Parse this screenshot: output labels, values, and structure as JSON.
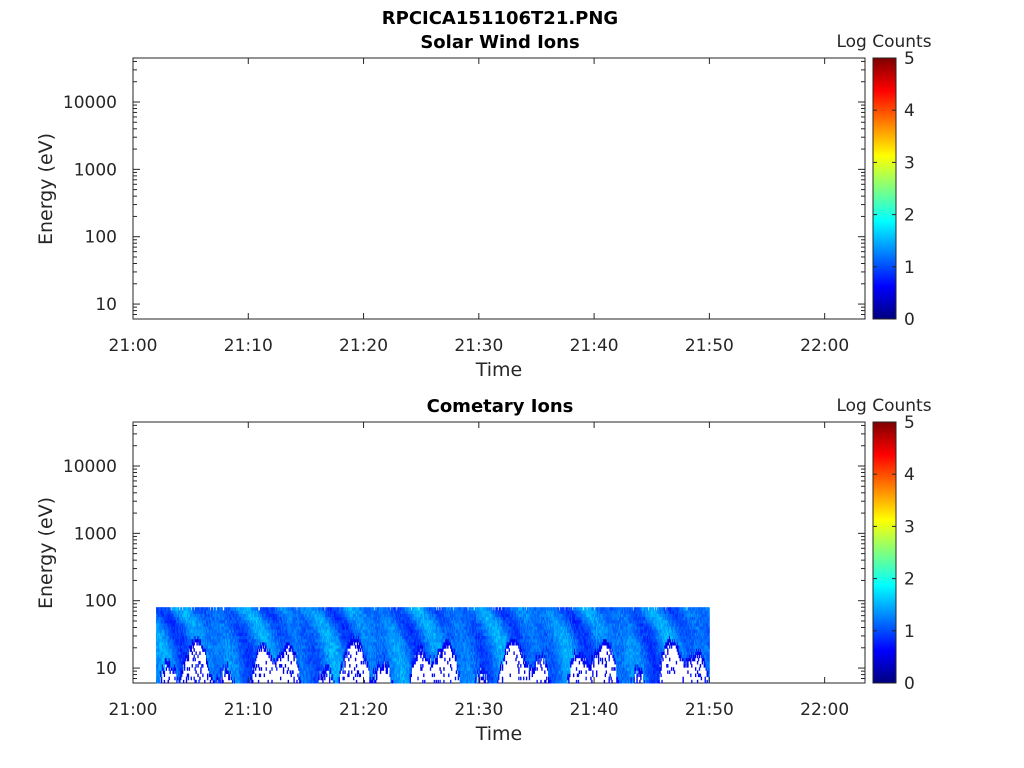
{
  "figure": {
    "title": "RPCICA151106T21.PNG"
  },
  "colormap": [
    "#00007f",
    "#0000ff",
    "#007fff",
    "#00ffff",
    "#7fff7f",
    "#ffff00",
    "#ff7f00",
    "#ff0000",
    "#7f0000"
  ],
  "chart_data": [
    {
      "type": "heatmap",
      "title": "Solar Wind Ions",
      "xlabel": "Time",
      "ylabel": "Energy (eV)",
      "x_ticks": [
        "21:00",
        "21:10",
        "21:20",
        "21:30",
        "21:40",
        "21:50",
        "22:00"
      ],
      "y_scale": "log",
      "y_ticks": [
        "10",
        "100",
        "1000",
        "10000"
      ],
      "ylim": [
        6,
        45000
      ],
      "colorbar_label": "Log Counts",
      "colorbar_ticks": [
        "0",
        "1",
        "2",
        "3",
        "4",
        "5"
      ],
      "clim": [
        0,
        5
      ],
      "data_present": false
    },
    {
      "type": "heatmap",
      "title": "Cometary Ions",
      "xlabel": "Time",
      "ylabel": "Energy (eV)",
      "x_ticks": [
        "21:00",
        "21:10",
        "21:20",
        "21:30",
        "21:40",
        "21:50",
        "22:00"
      ],
      "y_scale": "log",
      "y_ticks": [
        "10",
        "100",
        "1000",
        "10000"
      ],
      "ylim": [
        6,
        45000
      ],
      "colorbar_label": "Log Counts",
      "colorbar_ticks": [
        "0",
        "1",
        "2",
        "3",
        "4",
        "5"
      ],
      "clim": [
        0,
        5
      ],
      "data_present": true,
      "data_time_range": [
        "21:02",
        "21:50"
      ],
      "data_energy_range_eV": [
        6,
        80
      ],
      "typical_log_counts": [
        0.5,
        1.7
      ]
    }
  ]
}
